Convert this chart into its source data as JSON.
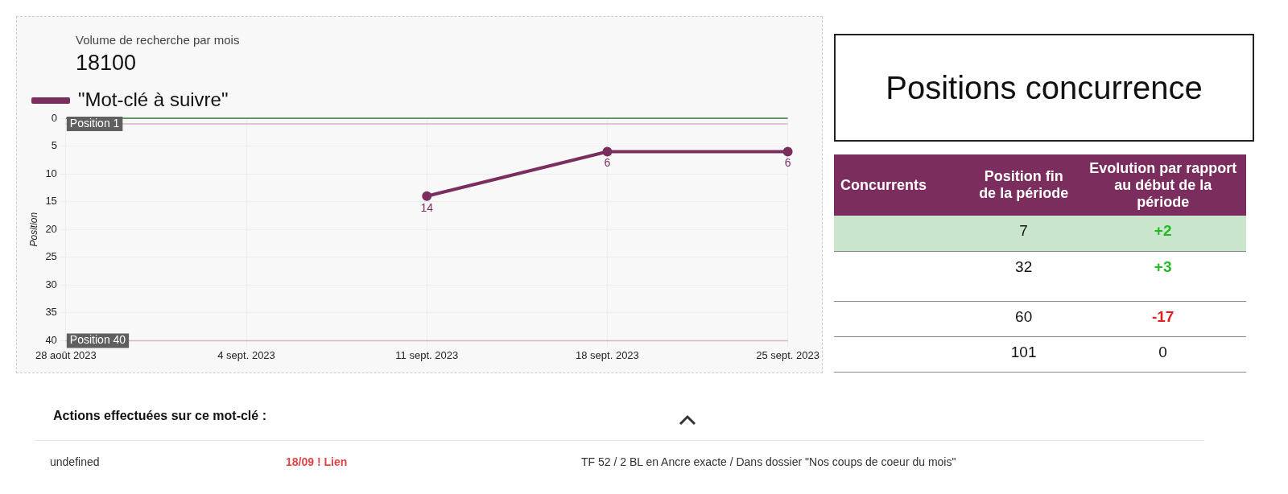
{
  "chart_data": [
    {
      "type": "line",
      "title": "Volume de recherche par mois",
      "subtitle": "18100",
      "ylabel": "Position",
      "categories": [
        "28 août 2023",
        "4 sept. 2023",
        "11 sept. 2023",
        "18 sept. 2023",
        "25 sept. 2023"
      ],
      "series": [
        {
          "name": "\"Mot-clé à suivre\"",
          "color": "#7b2d5e",
          "values": [
            null,
            null,
            14,
            6,
            6
          ]
        }
      ],
      "ylim": [
        40,
        0
      ],
      "yticks": [
        0,
        5,
        10,
        15,
        20,
        25,
        30,
        35,
        40
      ],
      "grid": true,
      "legend": "top left",
      "marker": "circle",
      "data_labels": true,
      "ref_lines": [
        {
          "axis": "y",
          "value": 1,
          "label": "Position 1"
        },
        {
          "axis": "y",
          "value": 40,
          "label": "Position 40"
        }
      ]
    },
    {
      "type": "other",
      "title": "Positions concurrence",
      "categories": [
        "Concurrents",
        "Position fin de la période",
        "Evolution par rapport au début de la période"
      ],
      "cell_labels": [
        [
          null,
          "7",
          "+2"
        ],
        [
          null,
          "32",
          "+3"
        ],
        [
          null,
          "60",
          "-17"
        ],
        [
          null,
          "101",
          "0"
        ]
      ]
    },
    {
      "type": "other",
      "title": "Actions effectuées sur ce mot-clé :",
      "annotations": [
        "undefined",
        "18/09 ! Lien",
        "TF 52 / 2 BL en Ancre exacte / Dans dossier \"Nos coups de coeur du mois\""
      ]
    }
  ]
}
